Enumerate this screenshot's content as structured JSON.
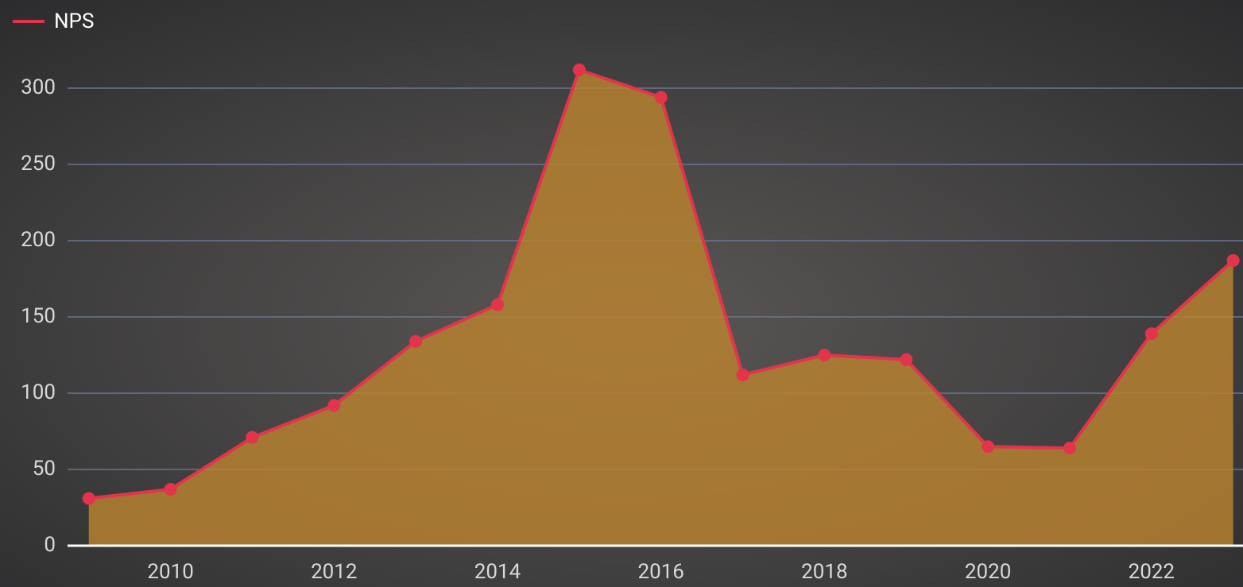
{
  "chart_data": {
    "type": "area",
    "x": [
      2009,
      2010,
      2011,
      2012,
      2013,
      2014,
      2015,
      2016,
      2017,
      2018,
      2019,
      2020,
      2021,
      2022,
      2023
    ],
    "series": [
      {
        "name": "NPS",
        "color": "#e3344c",
        "fill": "#b9822f",
        "values": [
          31,
          37,
          71,
          92,
          134,
          158,
          312,
          294,
          112,
          125,
          122,
          65,
          64,
          139,
          187
        ]
      }
    ],
    "xlim": [
      2008.74,
      2023.12
    ],
    "xticks": [
      2010,
      2012,
      2014,
      2016,
      2018,
      2020,
      2022
    ],
    "ylim": [
      0,
      325
    ],
    "yticks": [
      0,
      50,
      100,
      150,
      200,
      250,
      300
    ],
    "grid": true,
    "legend": "top-left"
  }
}
